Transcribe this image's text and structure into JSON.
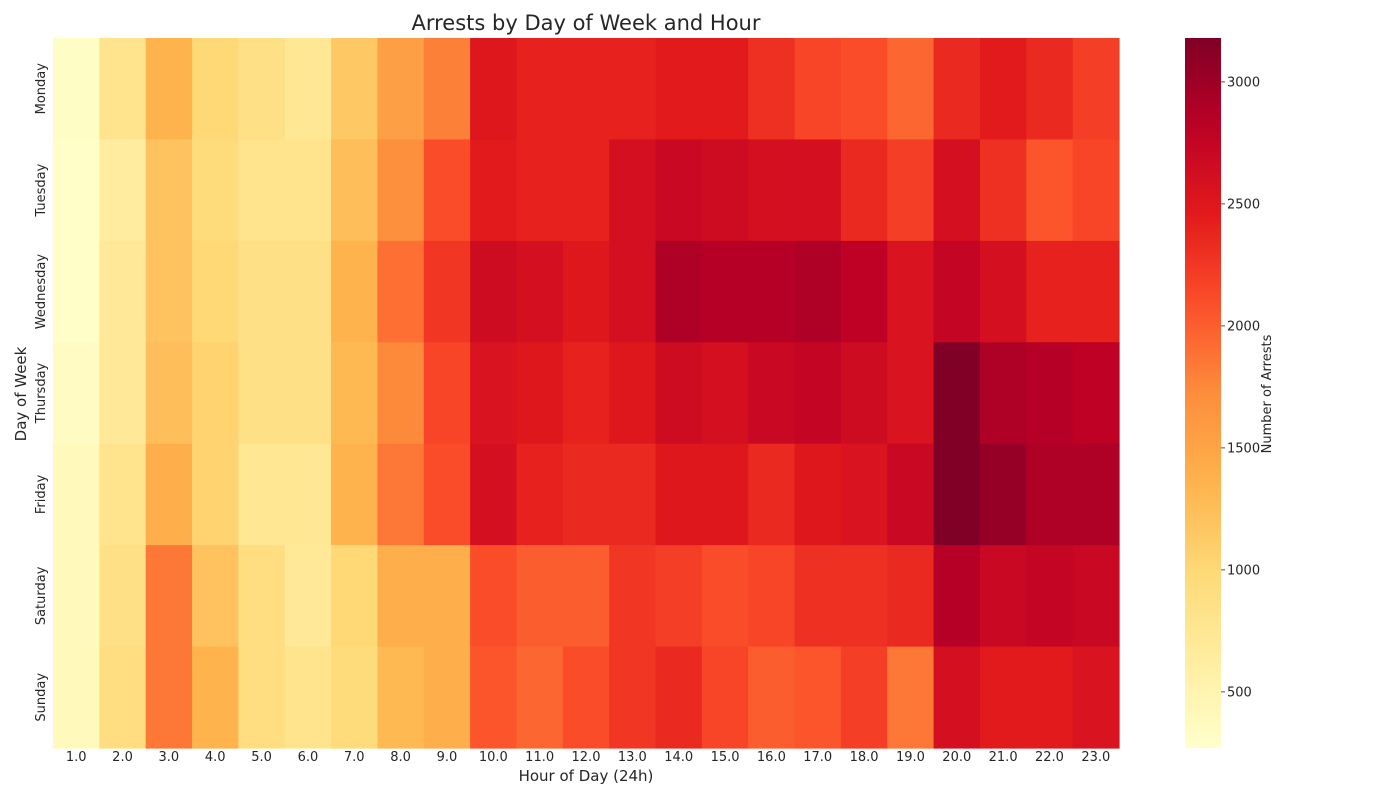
{
  "chart_data": {
    "type": "heatmap",
    "title": "Arrests by Day of Week and Hour",
    "xlabel": "Hour of Day (24h)",
    "ylabel": "Day of Week",
    "x_categories": [
      "1.0",
      "2.0",
      "3.0",
      "4.0",
      "5.0",
      "6.0",
      "7.0",
      "8.0",
      "9.0",
      "10.0",
      "11.0",
      "12.0",
      "13.0",
      "14.0",
      "15.0",
      "16.0",
      "17.0",
      "18.0",
      "19.0",
      "20.0",
      "21.0",
      "22.0",
      "23.0"
    ],
    "y_categories": [
      "Monday",
      "Tuesday",
      "Wednesday",
      "Thursday",
      "Friday",
      "Saturday",
      "Sunday"
    ],
    "values": [
      [
        320,
        800,
        1350,
        1000,
        850,
        750,
        1150,
        1550,
        1800,
        2500,
        2400,
        2400,
        2400,
        2450,
        2450,
        2300,
        2150,
        2100,
        1950,
        2350,
        2450,
        2350,
        2200
      ],
      [
        300,
        650,
        1200,
        950,
        800,
        800,
        1250,
        1700,
        2100,
        2450,
        2400,
        2400,
        2600,
        2700,
        2650,
        2600,
        2600,
        2350,
        2200,
        2600,
        2300,
        2050,
        2150
      ],
      [
        300,
        700,
        1200,
        1000,
        850,
        850,
        1350,
        1900,
        2250,
        2650,
        2600,
        2500,
        2600,
        2900,
        2850,
        2850,
        2900,
        2800,
        2550,
        2750,
        2600,
        2400,
        2400
      ],
      [
        350,
        700,
        1250,
        1050,
        850,
        850,
        1300,
        1750,
        2150,
        2550,
        2500,
        2400,
        2500,
        2650,
        2600,
        2700,
        2750,
        2650,
        2550,
        3180,
        2900,
        2850,
        2800
      ],
      [
        400,
        800,
        1400,
        1050,
        750,
        750,
        1350,
        1850,
        2100,
        2600,
        2400,
        2350,
        2350,
        2500,
        2500,
        2350,
        2500,
        2550,
        2700,
        3180,
        3050,
        2900,
        2900
      ],
      [
        400,
        850,
        1850,
        1200,
        900,
        700,
        1000,
        1400,
        1400,
        2100,
        2000,
        2000,
        2250,
        2200,
        2100,
        2150,
        2300,
        2300,
        2350,
        2850,
        2700,
        2750,
        2700
      ],
      [
        400,
        900,
        1850,
        1350,
        900,
        800,
        950,
        1300,
        1400,
        2050,
        1950,
        2100,
        2250,
        2350,
        2150,
        2000,
        2050,
        2200,
        1850,
        2600,
        2450,
        2450,
        2550
      ]
    ],
    "colorbar": {
      "label": "Number of Arrests",
      "min": 270,
      "max": 3180,
      "ticks": [
        500,
        1000,
        1500,
        2000,
        2500,
        3000
      ],
      "colormap": "YlOrRd"
    }
  }
}
